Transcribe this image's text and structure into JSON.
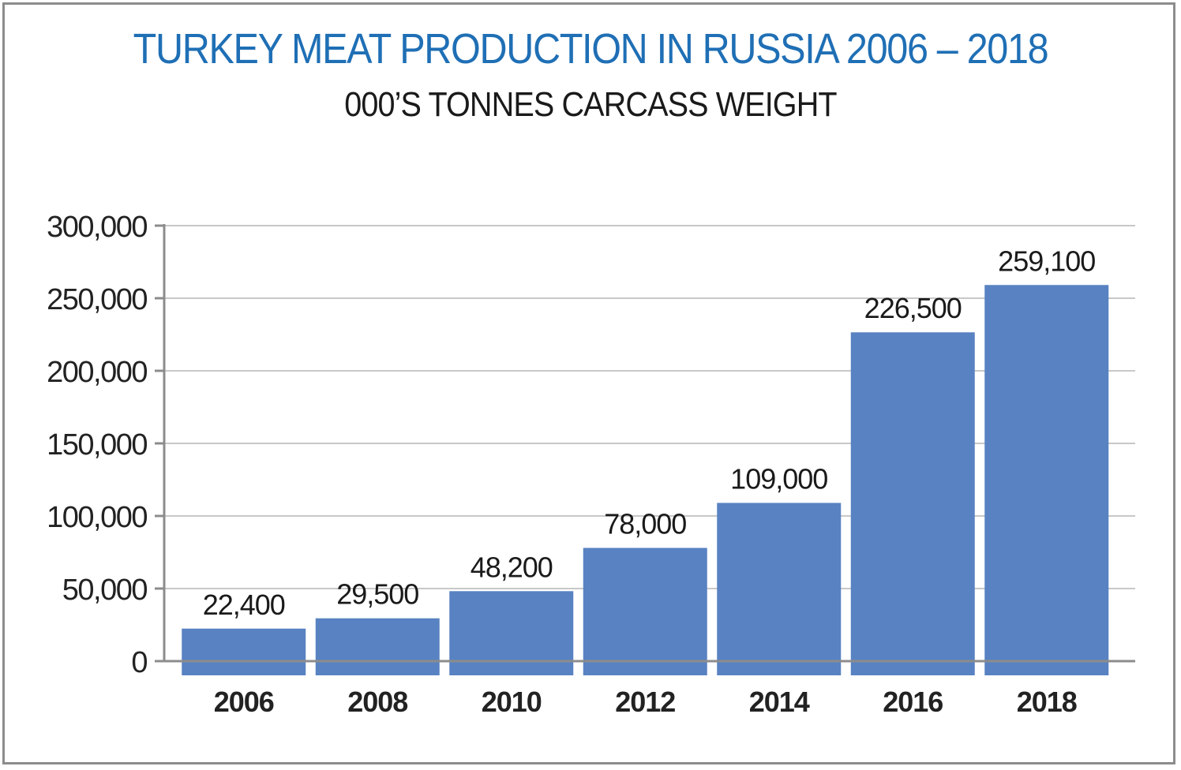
{
  "chart_data": {
    "type": "bar",
    "title": "TURKEY MEAT PRODUCTION IN RUSSIA 2006 – 2018",
    "subtitle": "000’S TONNES CARCASS WEIGHT",
    "categories": [
      "2006",
      "2008",
      "2010",
      "2012",
      "2014",
      "2016",
      "2018"
    ],
    "values": [
      22400,
      29500,
      48200,
      78000,
      109000,
      226500,
      259100
    ],
    "data_labels": [
      "22,400",
      "29,500",
      "48,200",
      "78,000",
      "109,000",
      "226,500",
      "259,100"
    ],
    "y_ticks": [
      0,
      50000,
      100000,
      150000,
      200000,
      250000,
      300000
    ],
    "y_tick_labels": [
      "0",
      "50,000",
      "100,000",
      "150,000",
      "200,000",
      "250,000",
      "300,000"
    ],
    "ylim": [
      0,
      300000
    ],
    "xlabel": "",
    "ylabel": "",
    "grid": true,
    "legend": "none",
    "colors": {
      "bar": "#5882c2",
      "title": "#1f6fb5",
      "grid": "#c8c8c8",
      "axis": "#8c8c8c"
    }
  }
}
